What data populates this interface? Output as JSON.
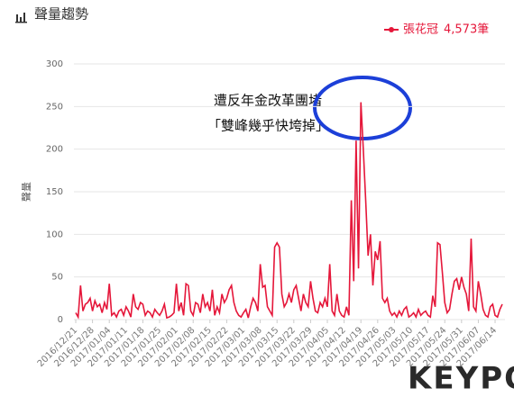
{
  "chart_data": {
    "type": "line",
    "title": "聲量趨勢",
    "y_label": "聲量",
    "legend_total": "4,573筆",
    "annotation": [
      "遭反年金改革團堵",
      "「雙峰幾乎快垮掉」"
    ],
    "logo": "KEYPO",
    "ylim": [
      0,
      300
    ],
    "yticks": [
      0,
      50,
      100,
      150,
      200,
      250,
      300
    ],
    "grid": true,
    "categories": [
      "2016/12/21",
      null,
      null,
      null,
      null,
      null,
      null,
      "2016/12/28",
      null,
      null,
      null,
      null,
      null,
      null,
      "2017/01/04",
      null,
      null,
      null,
      null,
      null,
      null,
      "2017/01/11",
      null,
      null,
      null,
      null,
      null,
      null,
      "2017/01/18",
      null,
      null,
      null,
      null,
      null,
      null,
      "2017/01/25",
      null,
      null,
      null,
      null,
      null,
      null,
      "2017/02/01",
      null,
      null,
      null,
      null,
      null,
      null,
      "2017/02/08",
      null,
      null,
      null,
      null,
      null,
      null,
      "2017/02/15",
      null,
      null,
      null,
      null,
      null,
      null,
      "2017/02/22",
      null,
      null,
      null,
      null,
      null,
      null,
      "2017/03/01",
      null,
      null,
      null,
      null,
      null,
      null,
      "2017/03/08",
      null,
      null,
      null,
      null,
      null,
      null,
      "2017/03/15",
      null,
      null,
      null,
      null,
      null,
      null,
      "2017/03/22",
      null,
      null,
      null,
      null,
      null,
      null,
      "2017/03/29",
      null,
      null,
      null,
      null,
      null,
      null,
      "2017/04/05",
      null,
      null,
      null,
      null,
      null,
      null,
      "2017/04/12",
      null,
      null,
      null,
      null,
      null,
      null,
      "2017/04/19",
      null,
      null,
      null,
      null,
      null,
      null,
      "2017/04/26",
      null,
      null,
      null,
      null,
      null,
      null,
      "2017/05/03",
      null,
      null,
      null,
      null,
      null,
      null,
      "2017/05/10",
      null,
      null,
      null,
      null,
      null,
      null,
      "2017/05/17",
      null,
      null,
      null,
      null,
      null,
      null,
      "2017/05/24",
      null,
      null,
      null,
      null,
      null,
      null,
      "2017/05/31",
      null,
      null,
      null,
      null,
      null,
      null,
      "2017/06/07",
      null,
      null,
      null,
      null,
      null,
      null,
      "2017/06/14",
      null,
      null,
      null
    ],
    "series": [
      {
        "name": "張花冠",
        "color": "#e5173a",
        "values": [
          8,
          3,
          40,
          10,
          18,
          20,
          25,
          10,
          22,
          15,
          18,
          8,
          20,
          12,
          42,
          5,
          8,
          3,
          10,
          12,
          5,
          15,
          10,
          3,
          30,
          15,
          12,
          20,
          18,
          5,
          10,
          8,
          3,
          12,
          8,
          5,
          10,
          18,
          2,
          3,
          5,
          8,
          42,
          10,
          20,
          5,
          42,
          40,
          10,
          5,
          20,
          18,
          8,
          30,
          15,
          20,
          10,
          35,
          5,
          15,
          8,
          30,
          20,
          25,
          35,
          40,
          20,
          10,
          5,
          3,
          8,
          12,
          2,
          15,
          25,
          20,
          10,
          65,
          38,
          40,
          15,
          10,
          5,
          85,
          90,
          85,
          30,
          15,
          20,
          30,
          20,
          35,
          40,
          25,
          10,
          30,
          20,
          15,
          45,
          25,
          10,
          8,
          20,
          15,
          25,
          15,
          65,
          10,
          5,
          30,
          10,
          5,
          3,
          15,
          5,
          140,
          45,
          210,
          60,
          255,
          200,
          140,
          75,
          100,
          40,
          80,
          70,
          92,
          25,
          20,
          25,
          10,
          5,
          8,
          3,
          10,
          5,
          12,
          15,
          3,
          5,
          8,
          3,
          12,
          5,
          8,
          10,
          5,
          3,
          28,
          15,
          90,
          88,
          55,
          20,
          8,
          12,
          30,
          45,
          48,
          35,
          50,
          38,
          30,
          10,
          95,
          15,
          10,
          45,
          30,
          12,
          5,
          3,
          15,
          18,
          5,
          3,
          12,
          18
        ]
      }
    ]
  }
}
